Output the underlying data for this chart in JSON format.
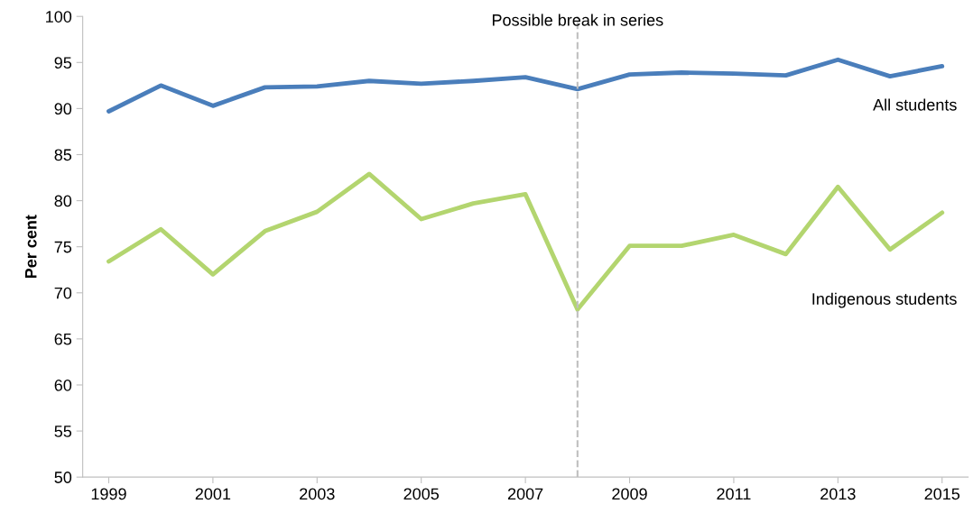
{
  "chart_data": {
    "type": "line",
    "ylabel": "Per cent",
    "x": [
      1999,
      2000,
      2001,
      2002,
      2003,
      2004,
      2005,
      2006,
      2007,
      2008,
      2009,
      2010,
      2011,
      2012,
      2013,
      2014,
      2015
    ],
    "series": [
      {
        "name": "All students",
        "color": "#4a7ebb",
        "values": [
          89.7,
          92.5,
          90.3,
          92.3,
          92.4,
          93.0,
          92.7,
          93.0,
          93.4,
          92.1,
          93.7,
          93.9,
          93.8,
          93.6,
          95.3,
          93.5,
          94.6
        ]
      },
      {
        "name": "Indigenous students",
        "color": "#b3d56f",
        "values": [
          73.4,
          76.9,
          72.0,
          76.7,
          78.8,
          82.9,
          78.0,
          79.7,
          80.7,
          68.2,
          75.1,
          75.1,
          76.3,
          74.2,
          81.5,
          74.7,
          78.7
        ]
      }
    ],
    "xlim": [
      1998.5,
      2015.5
    ],
    "xticks": [
      1999,
      2001,
      2003,
      2005,
      2007,
      2009,
      2011,
      2013,
      2015
    ],
    "ylim": [
      50,
      100
    ],
    "yticks": [
      50,
      55,
      60,
      65,
      70,
      75,
      80,
      85,
      90,
      95,
      100
    ],
    "ref_lines": [
      {
        "axis": "x",
        "value": 2008,
        "label": "Possible break in series",
        "color": "#bfbfbf",
        "line_style": "dashed"
      }
    ],
    "grid": false,
    "legend": false,
    "marker": "none",
    "line_style": "solid"
  }
}
